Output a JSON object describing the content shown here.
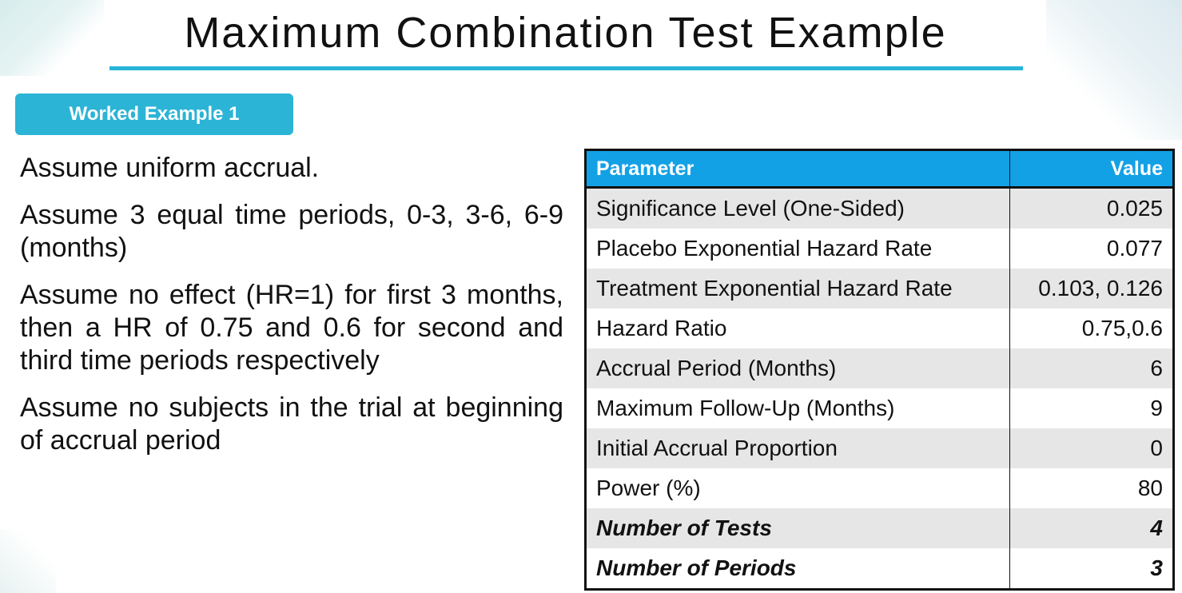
{
  "slide": {
    "title": "Maximum Combination Test Example",
    "badge": "Worked Example 1",
    "assumptions": [
      "Assume  uniform accrual.",
      "Assume 3 equal time periods, 0-3, 3-6, 6-9 (months)",
      "Assume no effect (HR=1) for first 3 months, then a HR of 0.75 and 0.6 for second and third time periods respectively",
      "Assume no subjects in the trial at beginning of accrual period"
    ]
  },
  "table": {
    "headers": [
      "Parameter",
      "Value"
    ],
    "rows": [
      {
        "parameter": "Significance Level (One-Sided)",
        "value": "0.025"
      },
      {
        "parameter": "Placebo Exponential Hazard Rate",
        "value": "0.077"
      },
      {
        "parameter": "Treatment Exponential Hazard Rate",
        "value": "0.103, 0.126"
      },
      {
        "parameter": "Hazard Ratio",
        "value": "0.75,0.6"
      },
      {
        "parameter": "Accrual Period (Months)",
        "value": "6"
      },
      {
        "parameter": "Maximum Follow-Up (Months)",
        "value": "9"
      },
      {
        "parameter": "Initial Accrual Proportion",
        "value": "0"
      },
      {
        "parameter": "Power (%)",
        "value": "80"
      },
      {
        "parameter": "Number of Tests",
        "value": "4"
      },
      {
        "parameter": "Number of Periods",
        "value": "3"
      }
    ]
  },
  "colors": {
    "accent": "#27b5d8",
    "badge": "#2cb4d6",
    "table_header": "#13a1e6",
    "row_shade": "#e6e6e6"
  }
}
